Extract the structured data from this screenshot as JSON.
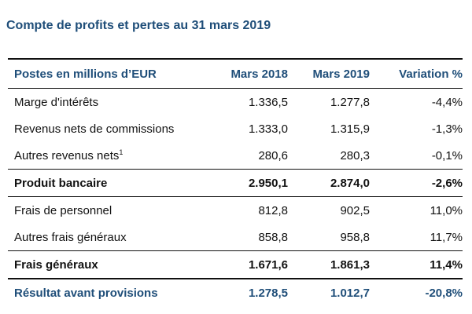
{
  "title": "Compte de profits et pertes au 31 mars 2019",
  "table": {
    "headers": [
      "Postes en millions d’EUR",
      "Mars 2018",
      "Mars 2019",
      "Variation %"
    ],
    "rows": [
      {
        "label": "Marge d'intérêts",
        "sup": "",
        "m2018": "1.336,5",
        "m2019": "1.277,8",
        "var": "-4,4%",
        "style": "normal"
      },
      {
        "label": "Revenus nets de commissions",
        "sup": "",
        "m2018": "1.333,0",
        "m2019": "1.315,9",
        "var": "-1,3%",
        "style": "normal"
      },
      {
        "label": "Autres revenus nets",
        "sup": "1",
        "m2018": "280,6",
        "m2019": "280,3",
        "var": "-0,1%",
        "style": "normal"
      },
      {
        "label": "Produit bancaire",
        "sup": "",
        "m2018": "2.950,1",
        "m2019": "2.874,0",
        "var": "-2,6%",
        "style": "bold"
      },
      {
        "label": "Frais de personnel",
        "sup": "",
        "m2018": "812,8",
        "m2019": "902,5",
        "var": "11,0%",
        "style": "normal"
      },
      {
        "label": "Autres frais généraux",
        "sup": "",
        "m2018": "858,8",
        "m2019": "958,8",
        "var": "11,7%",
        "style": "normal"
      },
      {
        "label": "Frais généraux",
        "sup": "",
        "m2018": "1.671,6",
        "m2019": "1.861,3",
        "var": "11,4%",
        "style": "bold"
      },
      {
        "label": "Résultat avant provisions",
        "sup": "",
        "m2018": "1.278,5",
        "m2019": "1.012,7",
        "var": "-20,8%",
        "style": "result"
      }
    ]
  }
}
